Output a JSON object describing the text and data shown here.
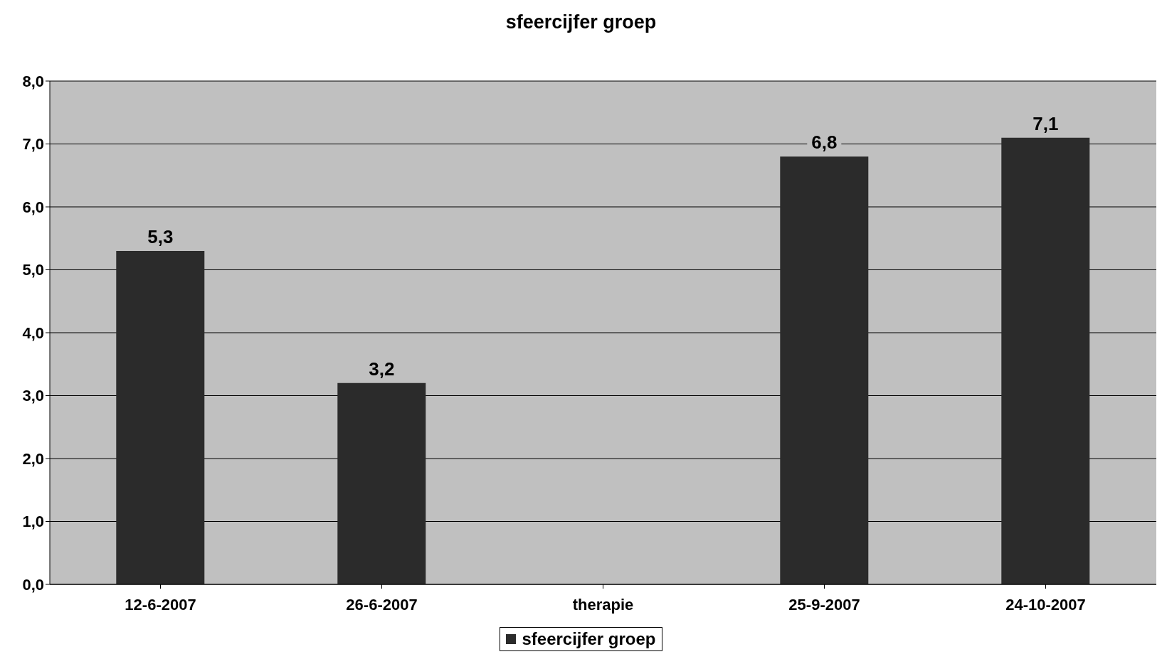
{
  "chart_data": {
    "type": "bar",
    "title": "sfeercijfer groep",
    "categories": [
      "12-6-2007",
      "26-6-2007",
      "therapie",
      "25-9-2007",
      "24-10-2007"
    ],
    "series": [
      {
        "name": "sfeercijfer groep",
        "color": "#2b2b2b",
        "values": [
          5.3,
          3.2,
          null,
          6.8,
          7.1
        ],
        "value_labels": [
          "5,3",
          "3,2",
          null,
          "6,8",
          "7,1"
        ]
      }
    ],
    "ylim": [
      0,
      8
    ],
    "yticks": [
      {
        "value": 0,
        "label": "0,0"
      },
      {
        "value": 1,
        "label": "1,0"
      },
      {
        "value": 2,
        "label": "2,0"
      },
      {
        "value": 3,
        "label": "3,0"
      },
      {
        "value": 4,
        "label": "4,0"
      },
      {
        "value": 5,
        "label": "5,0"
      },
      {
        "value": 6,
        "label": "6,0"
      },
      {
        "value": 7,
        "label": "7,0"
      },
      {
        "value": 8,
        "label": "8,0"
      }
    ],
    "grid": "y",
    "legend": "bottom"
  }
}
